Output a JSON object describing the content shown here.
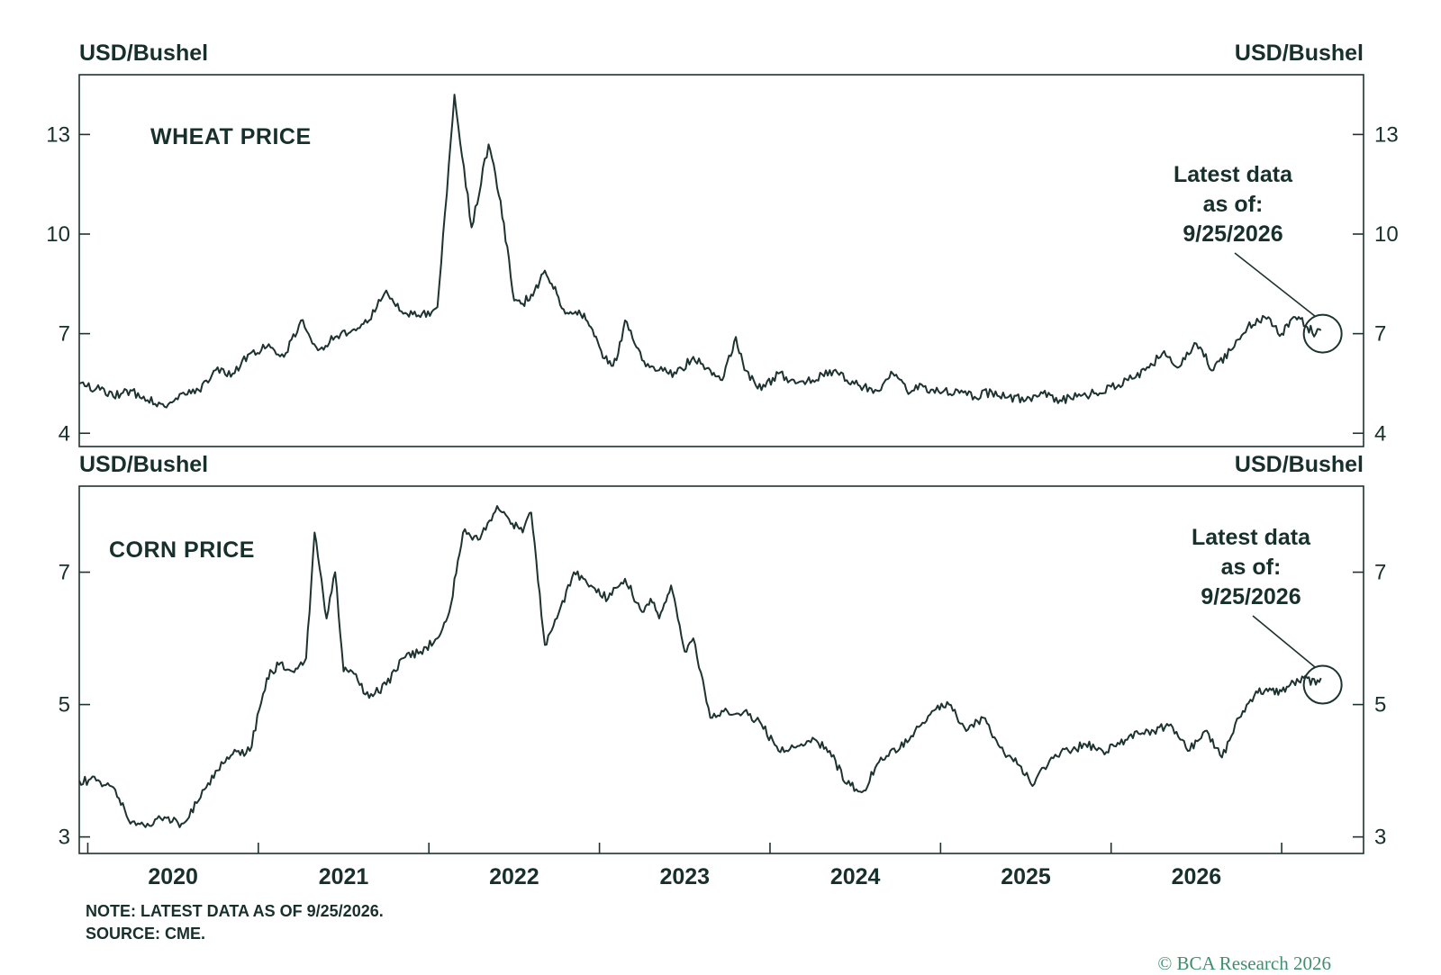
{
  "chart_data": [
    {
      "type": "line",
      "title": "WHEAT PRICE",
      "ylabel_left": "USD/Bushel",
      "ylabel_right": "USD/Bushel",
      "ylim": [
        3.6,
        14.8
      ],
      "yticks": [
        4,
        7,
        10,
        13
      ],
      "annotation": {
        "lines": [
          "Latest data",
          "as of:",
          "9/25/2026"
        ],
        "x": 2026.73,
        "y": 7.0
      },
      "series": [
        {
          "x": [
            2019.45,
            2019.55,
            2019.65,
            2019.75,
            2019.85,
            2019.95,
            2020.05,
            2020.15,
            2020.25,
            2020.35,
            2020.45,
            2020.55,
            2020.65,
            2020.75,
            2020.85,
            2020.95,
            2021.05,
            2021.15,
            2021.25,
            2021.35,
            2021.45,
            2021.55,
            2021.65,
            2021.75,
            2021.85,
            2021.92,
            2022.0,
            2022.05,
            2022.12,
            2022.18,
            2022.22,
            2022.25,
            2022.3,
            2022.38,
            2022.45,
            2022.5,
            2022.55,
            2022.6,
            2022.65,
            2022.75,
            2022.85,
            2022.95,
            2023.05,
            2023.15,
            2023.22,
            2023.3,
            2023.35,
            2023.45,
            2023.55,
            2023.65,
            2023.75,
            2023.85,
            2023.95,
            2024.05,
            2024.15,
            2024.22,
            2024.3,
            2024.4,
            2024.5,
            2024.6,
            2024.7,
            2024.8,
            2024.9,
            2025.0,
            2025.1,
            2025.2,
            2025.3,
            2025.4,
            2025.5,
            2025.6,
            2025.7,
            2025.8,
            2025.9,
            2026.0,
            2026.1,
            2026.2,
            2026.3,
            2026.4,
            2026.5,
            2026.55,
            2026.6,
            2026.65,
            2026.7,
            2026.73
          ],
          "y": [
            5.5,
            5.35,
            5.1,
            5.3,
            5.0,
            4.8,
            5.2,
            5.3,
            5.9,
            5.8,
            6.4,
            6.6,
            6.3,
            7.4,
            6.5,
            6.9,
            7.1,
            7.4,
            8.3,
            7.6,
            7.5,
            7.8,
            14.2,
            10.2,
            12.7,
            11.0,
            8.0,
            7.9,
            8.3,
            8.9,
            8.5,
            8.2,
            7.6,
            7.7,
            7.2,
            6.6,
            6.1,
            6.2,
            7.4,
            6.2,
            5.9,
            5.8,
            6.3,
            5.9,
            5.6,
            6.9,
            5.9,
            5.3,
            5.8,
            5.5,
            5.6,
            5.9,
            5.6,
            5.4,
            5.3,
            5.8,
            5.3,
            5.4,
            5.2,
            5.3,
            5.1,
            5.25,
            5.1,
            5.0,
            5.2,
            5.0,
            5.1,
            5.2,
            5.4,
            5.6,
            5.9,
            6.4,
            6.0,
            6.7,
            5.9,
            6.5,
            7.2,
            7.5,
            7.0,
            7.4,
            7.5,
            7.2,
            7.0,
            7.1
          ]
        }
      ]
    },
    {
      "type": "line",
      "title": "CORN PRICE",
      "ylabel_left": "USD/Bushel",
      "ylabel_right": "USD/Bushel",
      "ylim": [
        2.75,
        8.3
      ],
      "yticks": [
        3,
        5,
        7
      ],
      "xticks": [
        "2020",
        "2021",
        "2022",
        "2023",
        "2024",
        "2025",
        "2026"
      ],
      "annotation": {
        "lines": [
          "Latest data",
          "as of:",
          "9/25/2026"
        ],
        "x": 2026.73,
        "y": 5.3
      },
      "series": [
        {
          "x": [
            2019.45,
            2019.55,
            2019.65,
            2019.75,
            2019.85,
            2019.95,
            2020.05,
            2020.15,
            2020.25,
            2020.35,
            2020.45,
            2020.55,
            2020.62,
            2020.7,
            2020.78,
            2020.83,
            2020.87,
            2020.9,
            2020.95,
            2021.0,
            2021.05,
            2021.15,
            2021.25,
            2021.35,
            2021.45,
            2021.55,
            2021.62,
            2021.7,
            2021.8,
            2021.9,
            2021.97,
            2022.05,
            2022.1,
            2022.18,
            2022.25,
            2022.35,
            2022.45,
            2022.55,
            2022.65,
            2022.75,
            2022.8,
            2022.85,
            2022.92,
            2023.0,
            2023.05,
            2023.15,
            2023.25,
            2023.35,
            2023.45,
            2023.55,
            2023.65,
            2023.75,
            2023.85,
            2023.95,
            2024.05,
            2024.15,
            2024.25,
            2024.35,
            2024.45,
            2024.55,
            2024.65,
            2024.75,
            2024.85,
            2024.95,
            2025.05,
            2025.15,
            2025.25,
            2025.35,
            2025.45,
            2025.55,
            2025.65,
            2025.75,
            2025.85,
            2025.95,
            2026.05,
            2026.15,
            2026.25,
            2026.35,
            2026.42,
            2026.5,
            2026.55,
            2026.6,
            2026.65,
            2026.7,
            2026.73
          ],
          "y": [
            3.85,
            3.85,
            3.75,
            3.2,
            3.2,
            3.3,
            3.2,
            3.55,
            4.0,
            4.25,
            4.3,
            5.4,
            5.6,
            5.5,
            5.7,
            7.6,
            6.9,
            6.3,
            7.0,
            5.5,
            5.5,
            5.1,
            5.3,
            5.7,
            5.8,
            6.0,
            6.4,
            7.6,
            7.5,
            8.0,
            7.8,
            7.6,
            7.9,
            5.9,
            6.3,
            7.0,
            6.8,
            6.6,
            6.9,
            6.4,
            6.6,
            6.3,
            6.8,
            5.8,
            6.0,
            4.8,
            4.9,
            4.9,
            4.7,
            4.3,
            4.35,
            4.5,
            4.3,
            3.8,
            3.7,
            4.2,
            4.3,
            4.6,
            4.9,
            5.0,
            4.6,
            4.8,
            4.35,
            4.1,
            3.8,
            4.2,
            4.3,
            4.4,
            4.3,
            4.4,
            4.6,
            4.6,
            4.7,
            4.3,
            4.6,
            4.2,
            4.8,
            5.2,
            5.2,
            5.2,
            5.3,
            5.35,
            5.4,
            5.3,
            5.4
          ]
        }
      ]
    }
  ],
  "footer": {
    "note": "NOTE: LATEST DATA AS OF 9/25/2026.",
    "source": "SOURCE: CME.",
    "copyright": "© BCA Research 2026"
  }
}
